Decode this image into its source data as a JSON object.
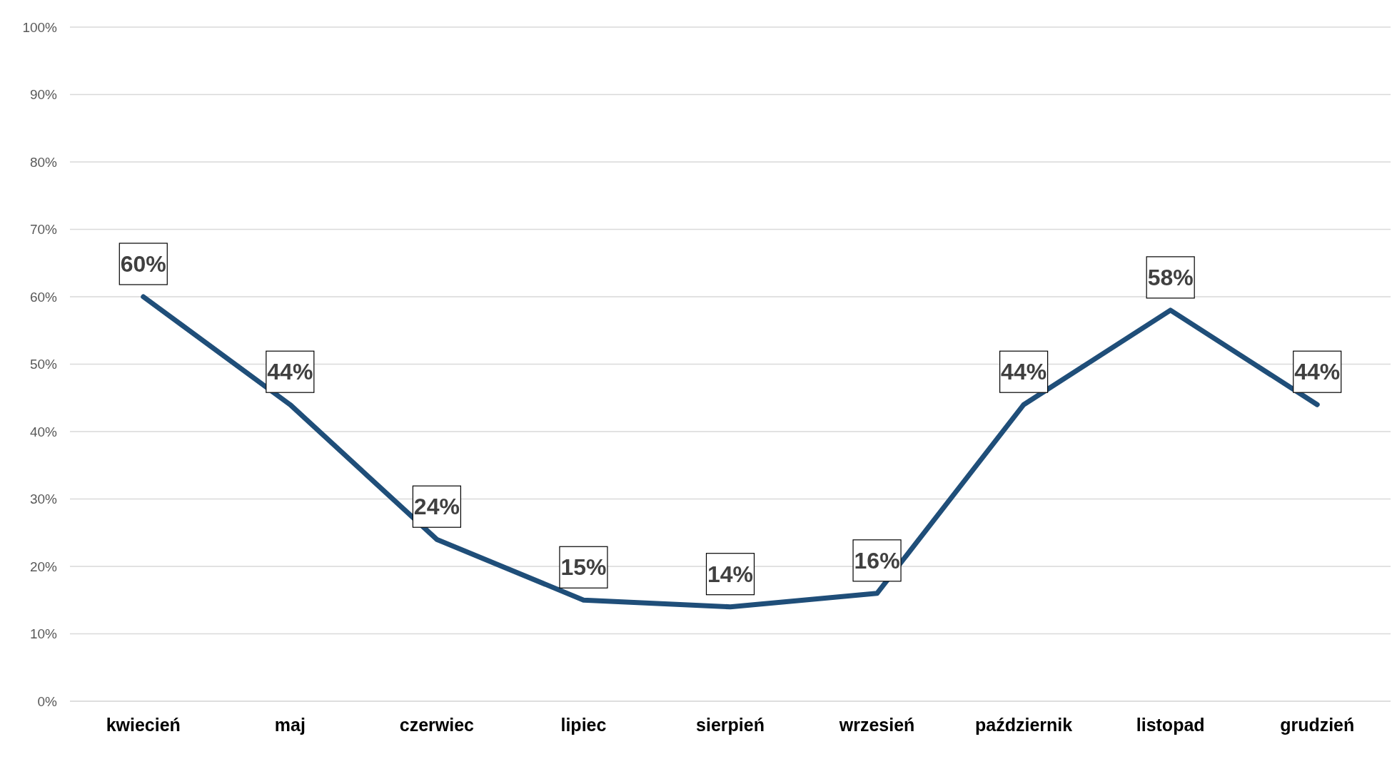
{
  "chart_data": {
    "type": "line",
    "categories": [
      "kwiecień",
      "maj",
      "czerwiec",
      "lipiec",
      "sierpień",
      "wrzesień",
      "październik",
      "listopad",
      "grudzień"
    ],
    "series": [
      {
        "color": "#1f4e79",
        "values": [
          60,
          44,
          24,
          15,
          14,
          16,
          44,
          58,
          44
        ],
        "value_labels": [
          "60%",
          "44%",
          "24%",
          "15%",
          "14%",
          "16%",
          "44%",
          "58%",
          "44%"
        ]
      }
    ],
    "ylim": [
      0,
      100
    ],
    "yticks": [
      {
        "value": 0,
        "label": "0%"
      },
      {
        "value": 10,
        "label": "10%"
      },
      {
        "value": 20,
        "label": "20%"
      },
      {
        "value": 30,
        "label": "30%"
      },
      {
        "value": 40,
        "label": "40%"
      },
      {
        "value": 50,
        "label": "50%"
      },
      {
        "value": 60,
        "label": "60%"
      },
      {
        "value": 70,
        "label": "70%"
      },
      {
        "value": 80,
        "label": "80%"
      },
      {
        "value": 90,
        "label": "90%"
      },
      {
        "value": 100,
        "label": "100%"
      }
    ],
    "grid": "y",
    "legend": false,
    "marker": "none",
    "line_style": "solid"
  }
}
